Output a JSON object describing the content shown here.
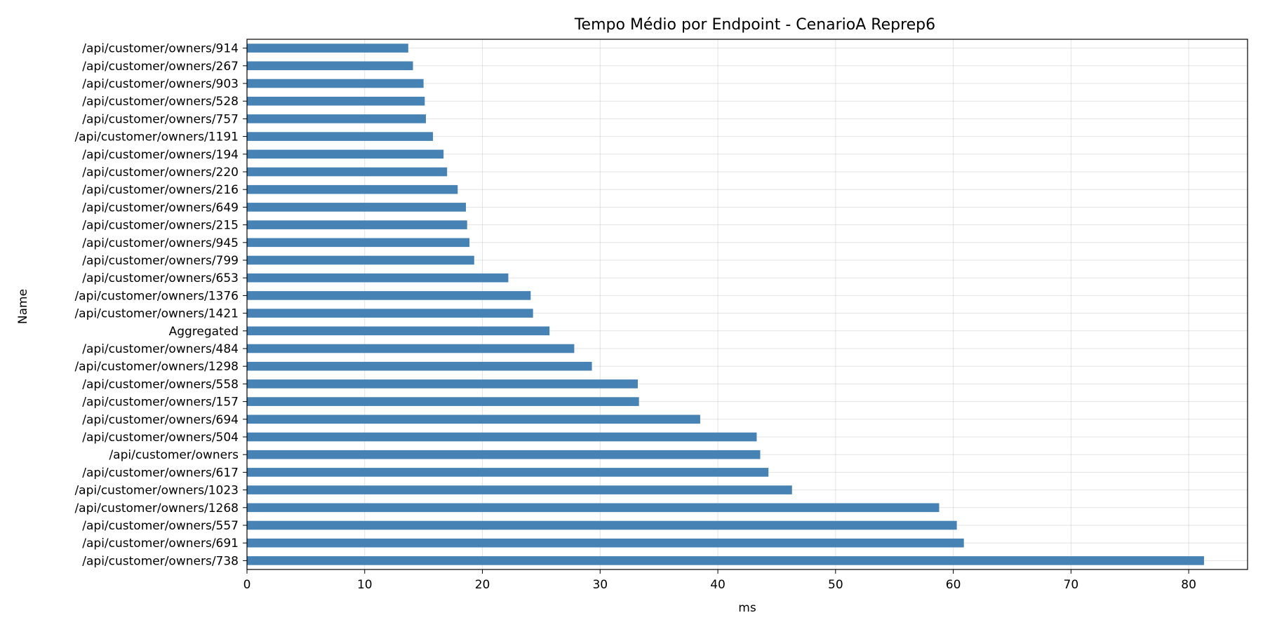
{
  "chart_data": {
    "type": "bar",
    "orientation": "horizontal",
    "title": "Tempo Médio por Endpoint - CenarioA Reprep6",
    "xlabel": "ms",
    "ylabel": "Name",
    "xlim": [
      0,
      85
    ],
    "xticks": [
      0,
      10,
      20,
      30,
      40,
      50,
      60,
      70,
      80
    ],
    "grid": true,
    "bar_color": "#4682b4",
    "categories": [
      "/api/customer/owners/914",
      "/api/customer/owners/267",
      "/api/customer/owners/903",
      "/api/customer/owners/528",
      "/api/customer/owners/757",
      "/api/customer/owners/1191",
      "/api/customer/owners/194",
      "/api/customer/owners/220",
      "/api/customer/owners/216",
      "/api/customer/owners/649",
      "/api/customer/owners/215",
      "/api/customer/owners/945",
      "/api/customer/owners/799",
      "/api/customer/owners/653",
      "/api/customer/owners/1376",
      "/api/customer/owners/1421",
      "Aggregated",
      "/api/customer/owners/484",
      "/api/customer/owners/1298",
      "/api/customer/owners/558",
      "/api/customer/owners/157",
      "/api/customer/owners/694",
      "/api/customer/owners/504",
      "/api/customer/owners",
      "/api/customer/owners/617",
      "/api/customer/owners/1023",
      "/api/customer/owners/1268",
      "/api/customer/owners/557",
      "/api/customer/owners/691",
      "/api/customer/owners/738"
    ],
    "values": [
      13.7,
      14.1,
      15.0,
      15.1,
      15.2,
      15.8,
      16.7,
      17.0,
      17.9,
      18.6,
      18.7,
      18.9,
      19.3,
      22.2,
      24.1,
      24.3,
      25.7,
      27.8,
      29.3,
      33.2,
      33.3,
      38.5,
      43.3,
      43.6,
      44.3,
      46.3,
      58.8,
      60.3,
      60.9,
      81.3
    ]
  }
}
